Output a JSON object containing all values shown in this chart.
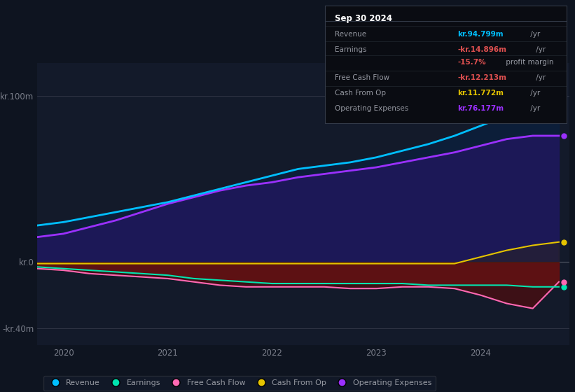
{
  "bg_color": "#0e1420",
  "plot_bg_color": "#131a2a",
  "legend_items": [
    "Revenue",
    "Earnings",
    "Free Cash Flow",
    "Cash From Op",
    "Operating Expenses"
  ],
  "legend_colors": [
    "#00bfff",
    "#00e5b0",
    "#ff69b4",
    "#e5c400",
    "#9b30ff"
  ],
  "info_box": {
    "date": "Sep 30 2024",
    "rows": [
      {
        "label": "Revenue",
        "value": "kr.94.799m",
        "value_color": "#00bfff",
        "suffix": " /yr"
      },
      {
        "label": "Earnings",
        "value": "-kr.14.896m",
        "value_color": "#e05050",
        "suffix": " /yr"
      },
      {
        "label": "",
        "value": "-15.7%",
        "value_color": "#e05050",
        "suffix": " profit margin"
      },
      {
        "label": "Free Cash Flow",
        "value": "-kr.12.213m",
        "value_color": "#e05050",
        "suffix": " /yr"
      },
      {
        "label": "Cash From Op",
        "value": "kr.11.772m",
        "value_color": "#e5c400",
        "suffix": " /yr"
      },
      {
        "label": "Operating Expenses",
        "value": "kr.76.177m",
        "value_color": "#9b30ff",
        "suffix": " /yr"
      }
    ]
  },
  "x": [
    2019.75,
    2020.0,
    2020.25,
    2020.5,
    2020.75,
    2021.0,
    2021.25,
    2021.5,
    2021.75,
    2022.0,
    2022.25,
    2022.5,
    2022.75,
    2023.0,
    2023.25,
    2023.5,
    2023.75,
    2024.0,
    2024.25,
    2024.5,
    2024.75
  ],
  "revenue": [
    22,
    24,
    27,
    30,
    33,
    36,
    40,
    44,
    48,
    52,
    56,
    58,
    60,
    63,
    67,
    71,
    76,
    82,
    88,
    93,
    95
  ],
  "op_expenses": [
    15,
    17,
    21,
    25,
    30,
    35,
    39,
    43,
    46,
    48,
    51,
    53,
    55,
    57,
    60,
    63,
    66,
    70,
    74,
    76,
    76
  ],
  "earnings": [
    -3,
    -4,
    -5,
    -6,
    -7,
    -8,
    -10,
    -11,
    -12,
    -13,
    -13,
    -13,
    -13,
    -13,
    -13,
    -14,
    -14,
    -14,
    -14,
    -15,
    -15
  ],
  "free_cash_flow": [
    -4,
    -5,
    -7,
    -8,
    -9,
    -10,
    -12,
    -14,
    -15,
    -15,
    -15,
    -15,
    -16,
    -16,
    -15,
    -15,
    -16,
    -20,
    -25,
    -28,
    -12
  ],
  "cash_from_op": [
    -1,
    -1,
    -1,
    -1,
    -1,
    -1,
    -1,
    -1,
    -1,
    -1,
    -1,
    -1,
    -1,
    -1,
    -1,
    -1,
    -1,
    3,
    7,
    10,
    12
  ]
}
